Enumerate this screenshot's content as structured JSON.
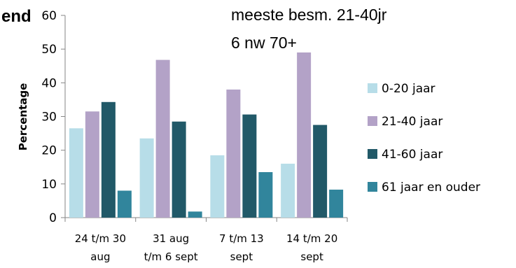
{
  "chart_data": {
    "type": "bar",
    "title_fragment": "end",
    "annotations": [
      "meeste besm. 21-40jr",
      "6 nw 70+"
    ],
    "ylabel": "Percentage",
    "ylim": [
      0,
      60
    ],
    "yticks": [
      0,
      10,
      20,
      30,
      40,
      50,
      60
    ],
    "categories": [
      [
        "24 t/m 30",
        "aug"
      ],
      [
        "31 aug",
        "t/m 6 sept"
      ],
      [
        "7 t/m 13",
        "sept"
      ],
      [
        "14 t/m 20",
        "sept"
      ]
    ],
    "series": [
      {
        "name": "0-20 jaar",
        "color": "#b7dde8",
        "values": [
          26.5,
          23.5,
          18.5,
          16
        ]
      },
      {
        "name": "21-40 jaar",
        "color": "#b3a2c7",
        "values": [
          31.5,
          46.8,
          38,
          49
        ]
      },
      {
        "name": "41-60 jaar",
        "color": "#215968",
        "values": [
          34.3,
          28.5,
          30.6,
          27.5
        ]
      },
      {
        "name": "61 jaar en ouder",
        "color": "#31859c",
        "values": [
          8,
          1.8,
          13.5,
          8.3
        ]
      }
    ],
    "grid": false,
    "legend_position": "right"
  }
}
